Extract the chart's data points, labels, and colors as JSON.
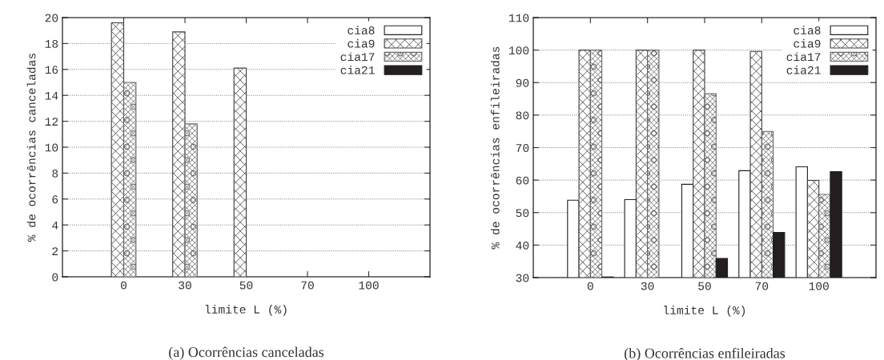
{
  "chart_data": [
    {
      "type": "bar",
      "xlabel": "limite L (%)",
      "ylabel": "% de ocorrências canceladas",
      "categories": [
        "0",
        "30",
        "50",
        "70",
        "100"
      ],
      "ylim": [
        0,
        20
      ],
      "yticks": [
        0,
        2,
        4,
        6,
        8,
        10,
        12,
        14,
        16,
        18,
        20
      ],
      "grid": "y",
      "legend": "top right",
      "series": [
        {
          "name": "cia8",
          "color": "#ffffff",
          "values": [
            null,
            null,
            null,
            null,
            null
          ]
        },
        {
          "name": "cia9",
          "color": "#404040",
          "values": [
            19.6,
            18.9,
            16.1,
            null,
            null
          ]
        },
        {
          "name": "cia17",
          "color": "#666666",
          "values": [
            15.0,
            11.8,
            null,
            null,
            null
          ]
        },
        {
          "name": "cia21",
          "color": "#231f20",
          "values": [
            null,
            null,
            null,
            null,
            null
          ]
        }
      ],
      "annotations": [
        "(a) Ocorrências canceladas"
      ]
    },
    {
      "type": "bar",
      "xlabel": "limite L (%)",
      "ylabel": "% de ocorrências enfileiradas",
      "categories": [
        "0",
        "30",
        "50",
        "70",
        "100"
      ],
      "ylim": [
        30,
        110
      ],
      "yticks": [
        30,
        40,
        50,
        60,
        70,
        80,
        90,
        100,
        110
      ],
      "grid": "y",
      "legend": "top right",
      "series": [
        {
          "name": "cia8",
          "color": "#ffffff",
          "values": [
            53.8,
            54.0,
            58.7,
            62.9,
            64.1
          ]
        },
        {
          "name": "cia9",
          "color": "#404040",
          "values": [
            100,
            100,
            100,
            99.6,
            59.9
          ]
        },
        {
          "name": "cia17",
          "color": "#666666",
          "values": [
            100,
            100,
            86.6,
            75.0,
            55.6
          ]
        },
        {
          "name": "cia21",
          "color": "#231f20",
          "values": [
            30.2,
            null,
            35.9,
            43.9,
            62.6
          ]
        }
      ],
      "annotations": [
        "(b) Ocorrências enfileiradas"
      ]
    }
  ]
}
